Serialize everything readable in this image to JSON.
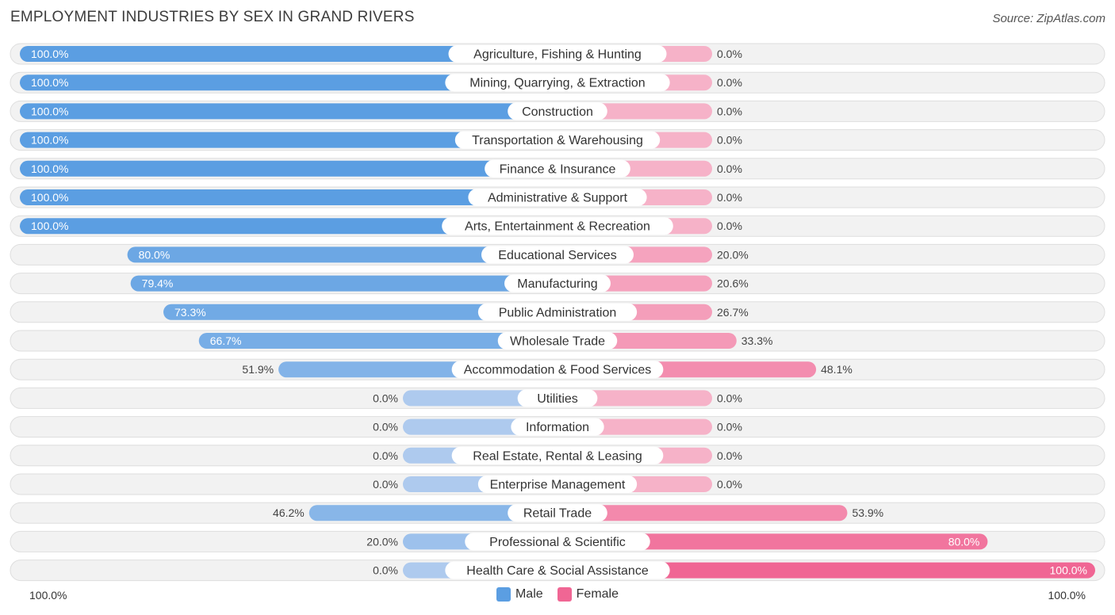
{
  "title": "EMPLOYMENT INDUSTRIES BY SEX IN GRAND RIVERS",
  "source": "Source: ZipAtlas.com",
  "axis": {
    "left_label": "100.0%",
    "right_label": "100.0%"
  },
  "legend": {
    "male_label": "Male",
    "female_label": "Female",
    "male_color": "#5b9ee2",
    "female_color": "#f06694"
  },
  "chart_data": {
    "type": "bar",
    "orientation": "horizontal-diverging",
    "categories": [
      "Agriculture, Fishing & Hunting",
      "Mining, Quarrying, & Extraction",
      "Construction",
      "Transportation & Warehousing",
      "Finance & Insurance",
      "Administrative & Support",
      "Arts, Entertainment & Recreation",
      "Educational Services",
      "Manufacturing",
      "Public Administration",
      "Wholesale Trade",
      "Accommodation & Food Services",
      "Utilities",
      "Information",
      "Real Estate, Rental & Leasing",
      "Enterprise Management",
      "Retail Trade",
      "Professional & Scientific",
      "Health Care & Social Assistance"
    ],
    "series": [
      {
        "name": "Male",
        "values": [
          100.0,
          100.0,
          100.0,
          100.0,
          100.0,
          100.0,
          100.0,
          80.0,
          79.4,
          73.3,
          66.7,
          51.9,
          0.0,
          0.0,
          0.0,
          0.0,
          46.2,
          20.0,
          0.0
        ]
      },
      {
        "name": "Female",
        "values": [
          0.0,
          0.0,
          0.0,
          0.0,
          0.0,
          0.0,
          0.0,
          20.0,
          20.6,
          26.7,
          33.3,
          48.1,
          0.0,
          0.0,
          0.0,
          0.0,
          53.9,
          80.0,
          100.0
        ]
      }
    ],
    "xlim": [
      0,
      100
    ],
    "value_suffix": "%"
  }
}
